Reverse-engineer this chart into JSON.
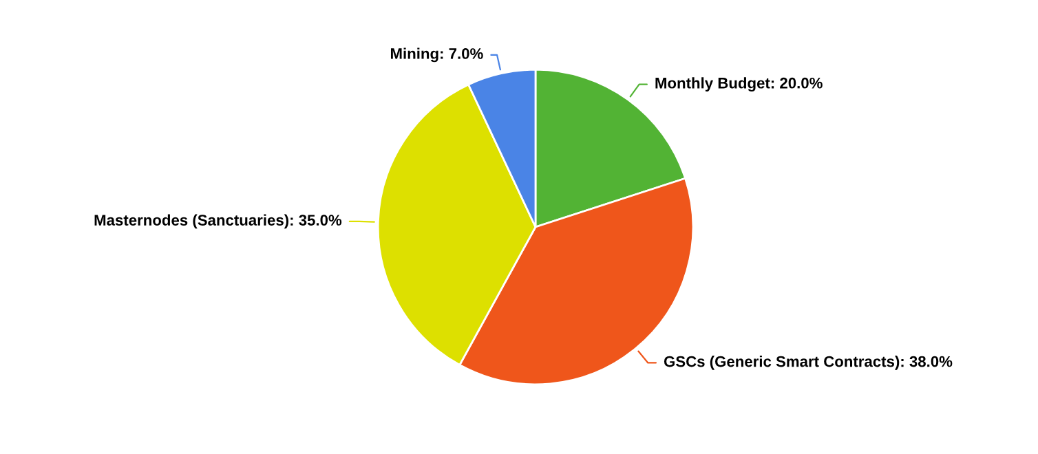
{
  "chart_data": {
    "type": "pie",
    "categories": [
      "Monthly Budget",
      "GSCs (Generic Smart Contracts)",
      "Masternodes (Sanctuaries)",
      "Mining"
    ],
    "values": [
      20.0,
      38.0,
      35.0,
      7.0
    ],
    "value_labels": [
      "20.0%",
      "38.0%",
      "35.0%",
      "7.0%"
    ],
    "colors": [
      "#52b334",
      "#ef561b",
      "#dde000",
      "#4a84e6"
    ],
    "legend": false
  }
}
